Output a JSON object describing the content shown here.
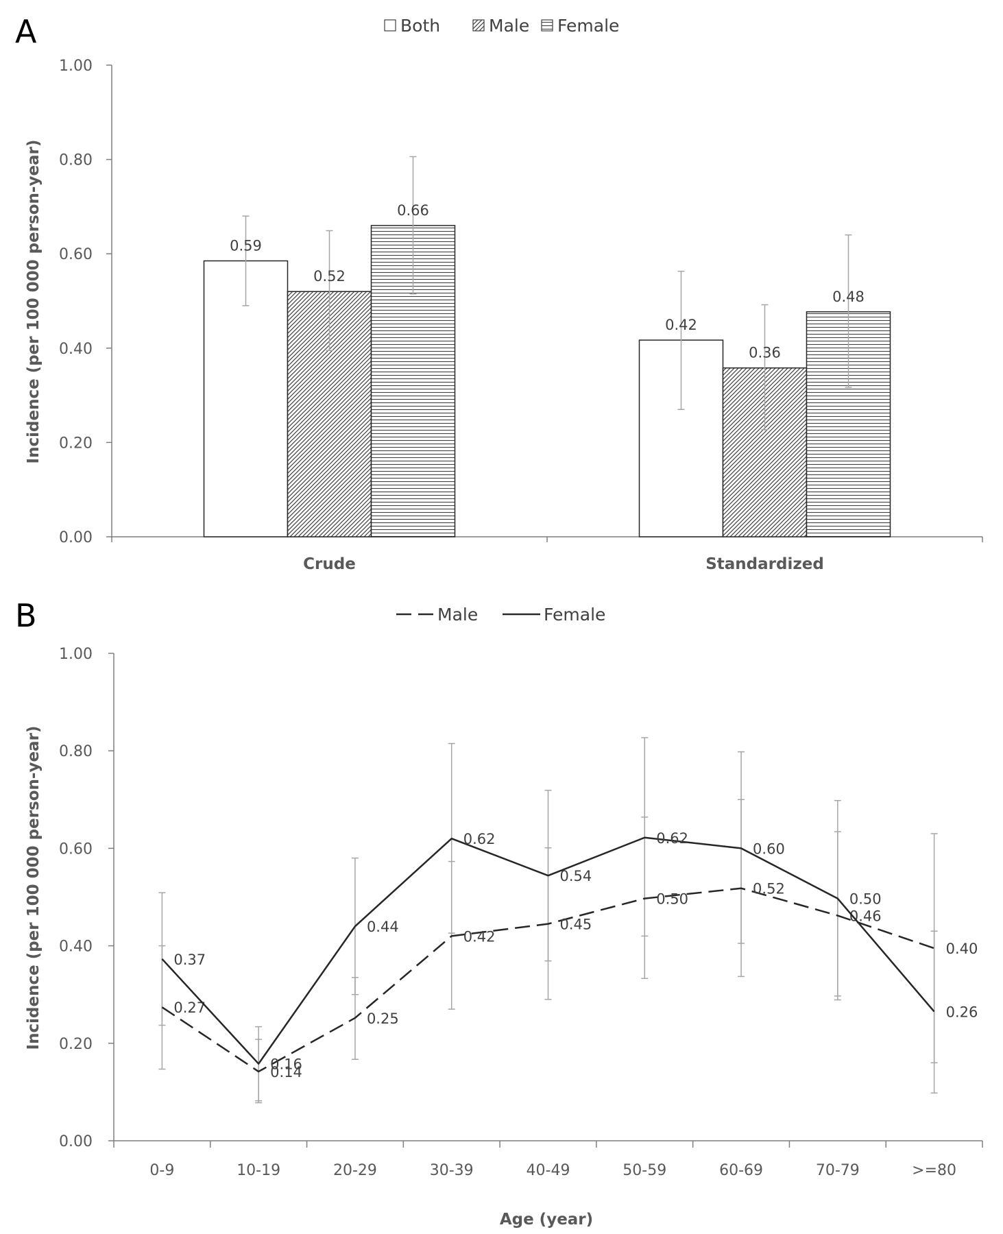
{
  "panel_labels": {
    "a": "A",
    "b": "B"
  },
  "colors": {
    "axis": "#7f7f7f",
    "text": "#595959",
    "line": "#262626",
    "error_bar": "#a6a6a6"
  },
  "chart_data": [
    {
      "type": "bar",
      "panel": "A",
      "categories": [
        "Crude",
        "Standardized"
      ],
      "series": [
        {
          "name": "Both",
          "pattern": "none",
          "values": [
            0.585,
            0.417
          ],
          "labels": [
            "0.59",
            "0.42"
          ],
          "err_low": [
            0.49,
            0.27
          ],
          "err_high": [
            0.68,
            0.563
          ]
        },
        {
          "name": "Male",
          "pattern": "diagonal-hatch",
          "values": [
            0.52,
            0.358
          ],
          "labels": [
            "0.52",
            "0.36"
          ],
          "err_low": [
            0.395,
            0.227
          ],
          "err_high": [
            0.649,
            0.492
          ]
        },
        {
          "name": "Female",
          "pattern": "horizontal-lines",
          "values": [
            0.66,
            0.477
          ],
          "labels": [
            "0.66",
            "0.48"
          ],
          "err_low": [
            0.515,
            0.317
          ],
          "err_high": [
            0.806,
            0.64
          ]
        }
      ],
      "ylabel": "Incidence (per 100 000 person-year)",
      "xlabel": "",
      "ylim": [
        0,
        1.0
      ],
      "yticks": [
        "0.00",
        "0.20",
        "0.40",
        "0.60",
        "0.80",
        "1.00"
      ],
      "legend": "top-center",
      "grid": false
    },
    {
      "type": "line",
      "panel": "B",
      "categories": [
        "0-9",
        "10-19",
        "20-29",
        "30-39",
        "40-49",
        "50-59",
        "60-69",
        "70-79",
        ">=80"
      ],
      "series": [
        {
          "name": "Male",
          "style": "dashed",
          "values": [
            0.274,
            0.142,
            0.252,
            0.42,
            0.445,
            0.497,
            0.518,
            0.462,
            0.395
          ],
          "labels": [
            "0.27",
            "0.14",
            "0.25",
            "0.42",
            "0.45",
            "0.50",
            "0.52",
            "0.46",
            "0.40"
          ],
          "err_low": [
            0.147,
            0.078,
            0.167,
            0.27,
            0.29,
            0.333,
            0.337,
            0.289,
            0.16
          ],
          "err_high": [
            0.4,
            0.208,
            0.335,
            0.573,
            0.601,
            0.664,
            0.7,
            0.634,
            0.63
          ]
        },
        {
          "name": "Female",
          "style": "solid",
          "values": [
            0.373,
            0.158,
            0.44,
            0.62,
            0.544,
            0.622,
            0.6,
            0.497,
            0.265
          ],
          "labels": [
            "0.37",
            "0.16",
            "0.44",
            "0.62",
            "0.54",
            "0.62",
            "0.60",
            "0.50",
            "0.26"
          ],
          "err_low": [
            0.237,
            0.082,
            0.3,
            0.426,
            0.369,
            0.42,
            0.405,
            0.297,
            0.098
          ],
          "err_high": [
            0.509,
            0.234,
            0.58,
            0.815,
            0.719,
            0.827,
            0.798,
            0.698,
            0.43
          ]
        }
      ],
      "ylabel": "Incidence (per 100 000 person-year)",
      "xlabel": "Age (year)",
      "ylim": [
        0,
        1.0
      ],
      "yticks": [
        "0.00",
        "0.20",
        "0.40",
        "0.60",
        "0.80",
        "1.00"
      ],
      "legend": "top-center",
      "grid": false
    }
  ]
}
